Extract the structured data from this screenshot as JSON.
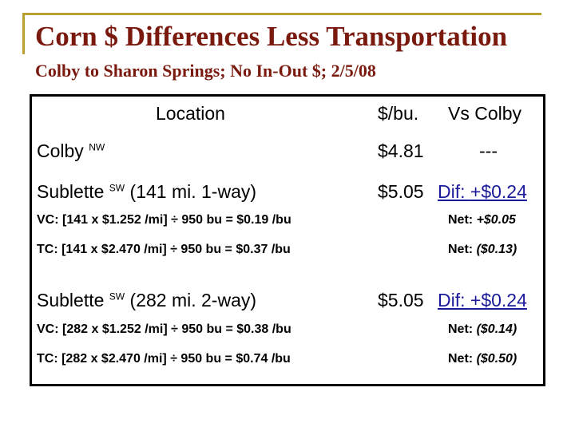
{
  "title": "Corn $ Differences Less Transportation",
  "subtitle": "Colby to Sharon Springs; No In-Out $; 2/5/08",
  "headers": {
    "location": "Location",
    "price": "$/bu.",
    "vs": "Vs Colby"
  },
  "rows": {
    "colby": {
      "name": "Colby",
      "dir": "NW",
      "price": "$4.81",
      "vs": "---"
    },
    "s1": {
      "name": "Sublette",
      "dir": "SW",
      "detail": "(141 mi. 1-way)",
      "price": "$5.05",
      "dif_label": "Dif:",
      "dif_value": "+$0.24",
      "vc_calc": "VC: [141 x $1.252 /mi] ÷ 950 bu = $0.19 /bu",
      "vc_net_label": "Net:",
      "vc_net_value": "+$0.05",
      "tc_calc": "TC: [141 x $2.470 /mi] ÷ 950 bu = $0.37 /bu",
      "tc_net_label": "Net:",
      "tc_net_value": "($0.13)"
    },
    "s2": {
      "name": "Sublette",
      "dir": "SW",
      "detail": "(282 mi. 2-way)",
      "price": "$5.05",
      "dif_label": "Dif:",
      "dif_value": "+$0.24",
      "vc_calc": "VC: [282 x $1.252 /mi] ÷ 950 bu = $0.38 /bu",
      "vc_net_label": "Net:",
      "vc_net_value": "($0.14)",
      "tc_calc": "TC: [282 x $2.470 /mi] ÷ 950 bu = $0.74 /bu",
      "tc_net_label": "Net:",
      "tc_net_value": "($0.50)"
    }
  },
  "colors": {
    "title": "#7a1a0e",
    "accent_rule": "#b8a030",
    "dif_text": "#1a1a9a"
  }
}
